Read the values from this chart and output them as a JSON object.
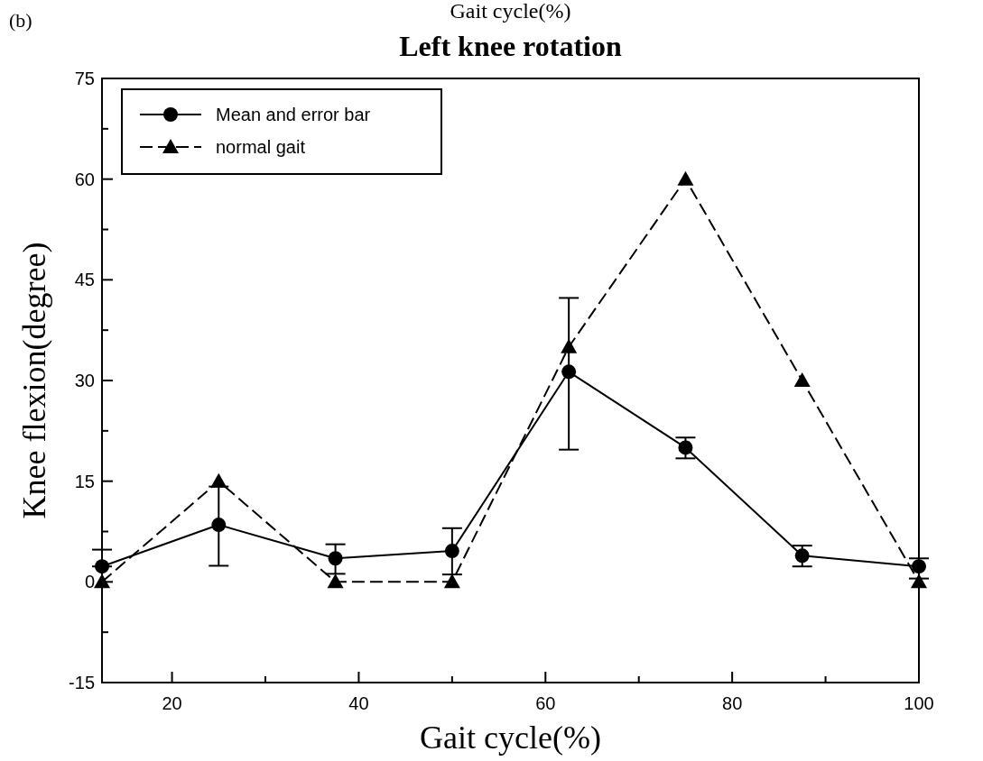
{
  "chart_data": {
    "type": "line",
    "title": "Left knee rotation",
    "xlabel": "Gait cycle(%)",
    "ylabel": "Knee flexion(degree)",
    "annotations": [
      "(b)",
      "Gait cycle(%)"
    ],
    "x": [
      12.5,
      25,
      37.5,
      50,
      62.5,
      75,
      87.5,
      100
    ],
    "xlim": [
      12.5,
      100
    ],
    "xticks": [
      20,
      40,
      60,
      80,
      100
    ],
    "ylim": [
      -15,
      75
    ],
    "yticks": [
      -15,
      0,
      15,
      30,
      45,
      60,
      75
    ],
    "legend": "top left",
    "grid": false,
    "series": [
      {
        "name": "Mean and error bar",
        "color": "#000000",
        "marker": "circle",
        "line_style": "solid",
        "values": [
          2.3,
          8.5,
          3.5,
          4.6,
          31.3,
          20,
          3.9,
          2.3
        ],
        "errors": [
          [
            2.3,
            4.8
          ],
          [
            2.4,
            14.2
          ],
          [
            1.2,
            5.6
          ],
          [
            1.1,
            8.0
          ],
          [
            19.7,
            42.3
          ],
          [
            18.4,
            21.5
          ],
          [
            2.3,
            5.4
          ],
          [
            0.5,
            3.5
          ]
        ]
      },
      {
        "name": "normal gait",
        "color": "#000000",
        "marker": "triangle",
        "line_style": "dashed",
        "values": [
          0,
          15,
          0,
          0,
          35,
          60,
          30,
          0
        ]
      }
    ]
  }
}
